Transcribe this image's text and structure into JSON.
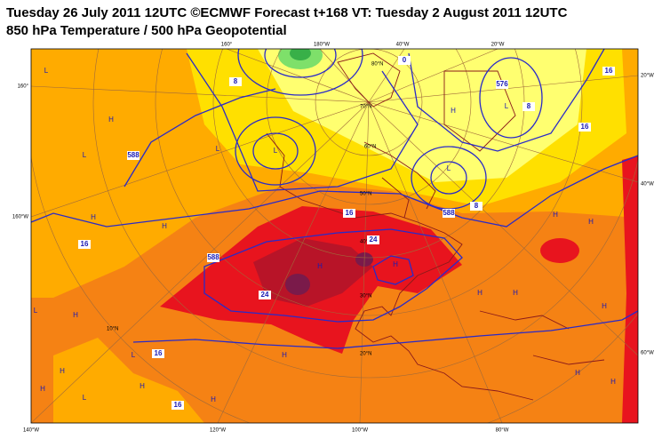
{
  "header": {
    "line1": "Tuesday 26 July 2011 12UTC ©ECMWF Forecast t+168 VT: Tuesday 2 August 2011 12UTC",
    "line2": "850 hPa Temperature / 500 hPa Geopotential"
  },
  "map": {
    "bottom_labels": [
      "140°W",
      "120°W",
      "100°W",
      "80°W"
    ],
    "top_labels": [
      "160°",
      "180°W",
      "40°W",
      "20°W"
    ],
    "left_labels": [
      "160°",
      "160°W"
    ],
    "right_labels": [
      "20°W",
      "40°W",
      "60°W"
    ],
    "lat_labels": [
      "80°N",
      "70°N",
      "60°N",
      "50°N",
      "40°N",
      "30°N",
      "20°N",
      "10°N"
    ],
    "contour_labels": [
      "16",
      "24",
      "16",
      "24",
      "16",
      "16",
      "16",
      "16",
      "588",
      "588",
      "576",
      "588",
      "0",
      "8",
      "8",
      "8"
    ],
    "pressure_centers": [
      "L",
      "H",
      "L",
      "H",
      "L",
      "H",
      "H",
      "L",
      "H",
      "L",
      "H",
      "L",
      "H",
      "H",
      "H",
      "H",
      "L",
      "H",
      "H",
      "H",
      "H",
      "H",
      "L",
      "H",
      "L",
      "H",
      "H",
      "H"
    ]
  }
}
